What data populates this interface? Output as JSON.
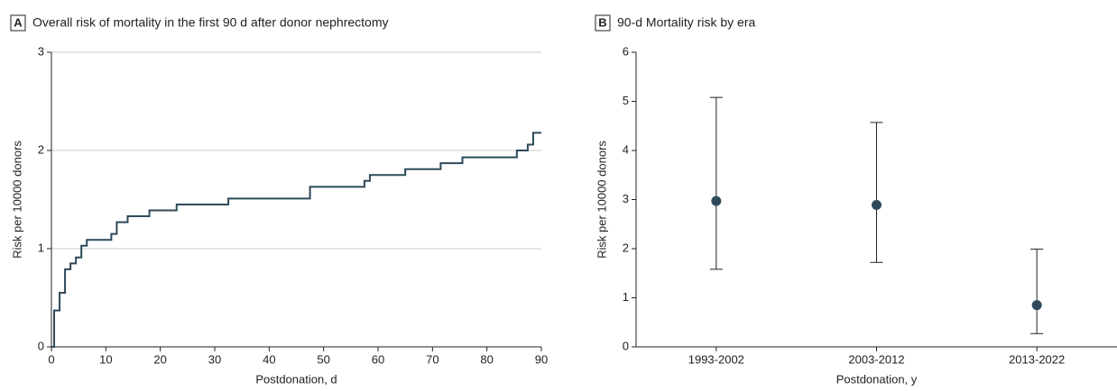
{
  "chart_data": [
    {
      "type": "line",
      "panel_label": "A",
      "title": "Overall risk of mortality in the first 90 d after donor nephrectomy",
      "x_label": "Postdonation, d",
      "y_label": "Risk per 10000 donors",
      "drawstyle": "steps-post",
      "color": "#2e4a5a",
      "grid": true,
      "x": [
        0,
        0.5,
        1.5,
        2.5,
        3.5,
        4.5,
        5.5,
        6.5,
        11,
        12,
        14,
        18,
        23,
        32.5,
        47.5,
        57.5,
        58.5,
        65,
        71.5,
        75.5,
        85.5,
        87.5,
        88.5,
        90
      ],
      "values": [
        0,
        0.37,
        0.55,
        0.79,
        0.85,
        0.91,
        1.03,
        1.09,
        1.15,
        1.27,
        1.33,
        1.39,
        1.45,
        1.51,
        1.63,
        1.69,
        1.75,
        1.81,
        1.87,
        1.93,
        2.0,
        2.06,
        2.18,
        2.18
      ],
      "xlim": [
        0,
        90
      ],
      "xticks": [
        0,
        10,
        20,
        30,
        40,
        50,
        60,
        70,
        80,
        90
      ],
      "ylim": [
        0,
        3
      ],
      "yticks": [
        0,
        1,
        2,
        3
      ]
    },
    {
      "type": "errorbar",
      "panel_label": "B",
      "title": "90-d Mortality risk by era",
      "x_label": "Postdonation, y",
      "y_label": "Risk per 10000 donors",
      "color": "#2e4a5a",
      "grid": false,
      "categories": [
        "1993-2002",
        "2003-2012",
        "2013-2022"
      ],
      "values": [
        2.97,
        2.89,
        0.85
      ],
      "lower": [
        1.58,
        1.72,
        0.27
      ],
      "upper": [
        5.08,
        4.57,
        1.99
      ],
      "ylim": [
        0,
        6
      ],
      "yticks": [
        0,
        1,
        2,
        3,
        4,
        5,
        6
      ]
    }
  ]
}
